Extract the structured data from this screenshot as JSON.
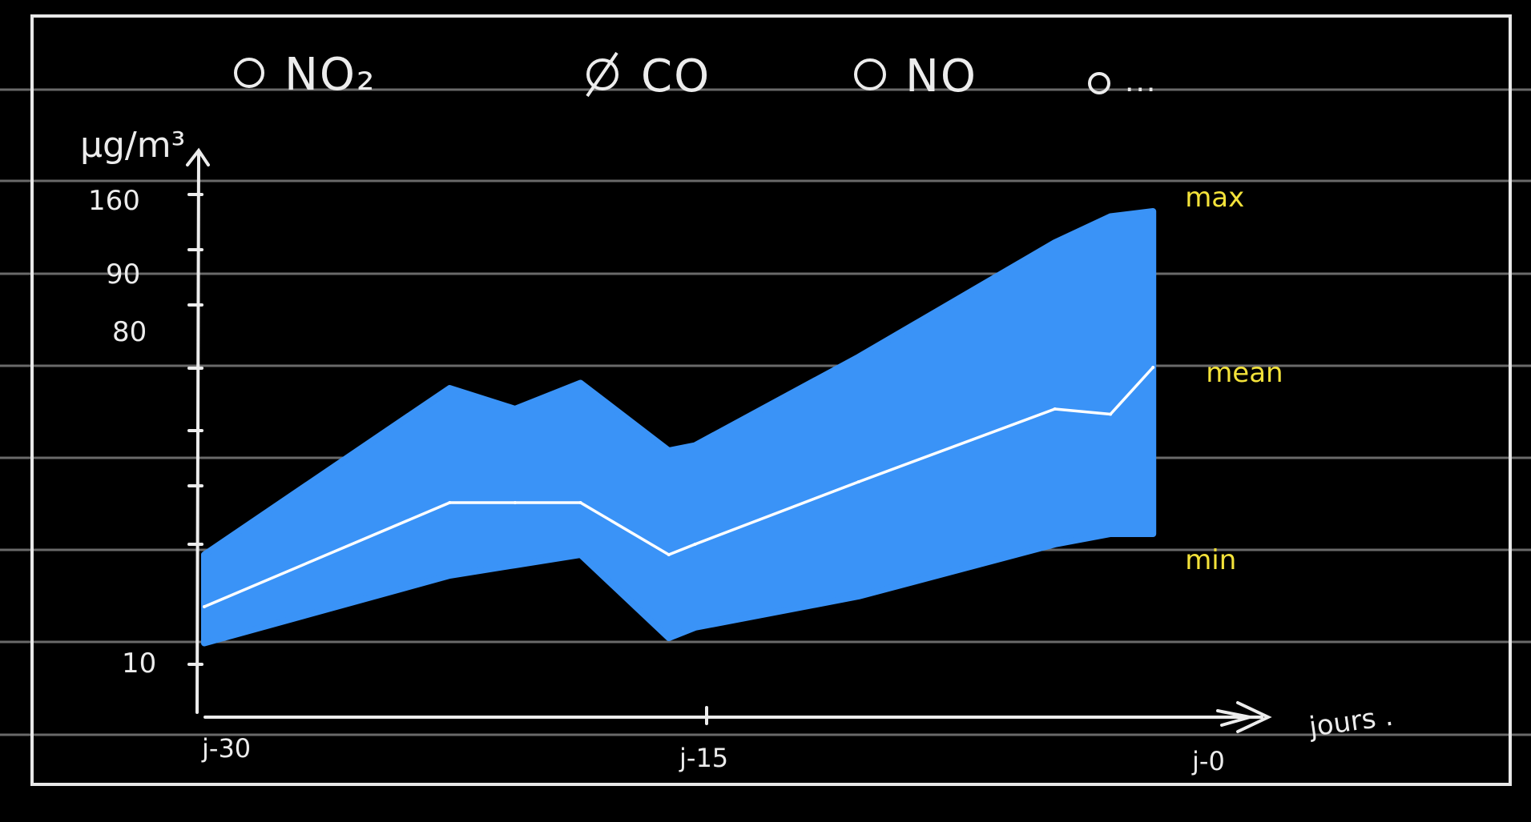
{
  "colors": {
    "background": "#000000",
    "frame": "#e8e8e8",
    "rule_lines": "#6a6a6a",
    "band": "#3a93f7",
    "mean_line": "#ffffff",
    "annotation": "#f3e23a"
  },
  "legend": {
    "items": [
      {
        "label": "NO₂",
        "marker": "circle-outline"
      },
      {
        "label": "CO",
        "marker": "circle-crossed"
      },
      {
        "label": "NO",
        "marker": "circle-outline"
      },
      {
        "label": "...",
        "marker": "circle-outline"
      }
    ]
  },
  "chart_data": {
    "type": "area",
    "ylabel": "μg/m³",
    "xlabel": "jours .",
    "y_tick_labels": [
      "160",
      "90",
      "80",
      "10"
    ],
    "x_tick_labels": [
      "j-30",
      "j-15",
      "j-0"
    ],
    "x": [
      -30,
      -22.5,
      -20.5,
      -18.5,
      -15.8,
      -15,
      -10,
      -4,
      -2.3,
      -1
    ],
    "series": [
      {
        "name": "max",
        "values": [
          18,
          50,
          46,
          51,
          38,
          39,
          56,
          78,
          83,
          84
        ]
      },
      {
        "name": "mean",
        "values": [
          8,
          28,
          28,
          28,
          18,
          20,
          32,
          46,
          45,
          54
        ]
      },
      {
        "name": "min",
        "values": [
          1,
          14,
          16,
          18,
          2,
          4,
          10,
          20,
          22,
          22
        ]
      }
    ],
    "annotations": [
      "max",
      "mean",
      "min"
    ],
    "grid": false
  }
}
